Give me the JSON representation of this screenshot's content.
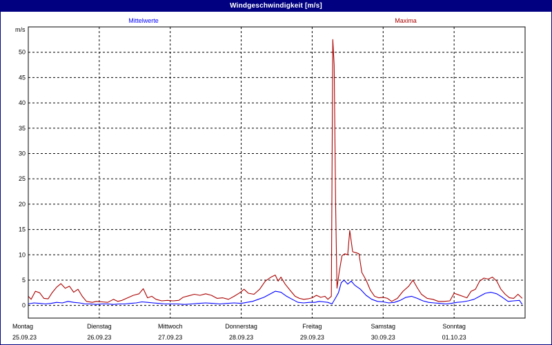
{
  "window": {
    "title": "Windgeschwindigkeit [m/s]"
  },
  "colors": {
    "mean": "#0000ff",
    "max": "#aa0000",
    "grid": "#000000",
    "frame": "#000080"
  },
  "chart_data": {
    "type": "line",
    "title": "Windgeschwindigkeit [m/s]",
    "ylabel": "m/s",
    "ylim": [
      -2.5,
      55
    ],
    "yticks": [
      0,
      5,
      10,
      15,
      20,
      25,
      30,
      35,
      40,
      45,
      50
    ],
    "xlim": [
      0,
      7
    ],
    "x_unit": "days since 25.09.23 00:00",
    "xticks": [
      {
        "day": "Montag",
        "date": "25.09.23"
      },
      {
        "day": "Dienstag",
        "date": "26.09.23"
      },
      {
        "day": "Mittwoch",
        "date": "27.09.23"
      },
      {
        "day": "Donnerstag",
        "date": "28.09.23"
      },
      {
        "day": "Freitag",
        "date": "29.09.23"
      },
      {
        "day": "Samstag",
        "date": "30.09.23"
      },
      {
        "day": "Sonntag",
        "date": "01.10.23"
      }
    ],
    "grid": true,
    "legend": "top",
    "series": [
      {
        "name": "Mittelwerte",
        "color": "#0000ff",
        "points": [
          [
            0.0,
            0.3
          ],
          [
            0.08,
            0.5
          ],
          [
            0.16,
            0.4
          ],
          [
            0.24,
            0.3
          ],
          [
            0.32,
            0.4
          ],
          [
            0.4,
            0.6
          ],
          [
            0.48,
            0.5
          ],
          [
            0.56,
            0.8
          ],
          [
            0.64,
            0.6
          ],
          [
            0.72,
            0.5
          ],
          [
            0.8,
            0.3
          ],
          [
            0.88,
            0.3
          ],
          [
            0.96,
            0.2
          ],
          [
            1.04,
            0.3
          ],
          [
            1.12,
            0.3
          ],
          [
            1.2,
            0.2
          ],
          [
            1.28,
            0.3
          ],
          [
            1.36,
            0.3
          ],
          [
            1.44,
            0.4
          ],
          [
            1.52,
            0.5
          ],
          [
            1.6,
            0.7
          ],
          [
            1.68,
            0.6
          ],
          [
            1.76,
            0.5
          ],
          [
            1.84,
            0.4
          ],
          [
            1.92,
            0.3
          ],
          [
            2.0,
            0.3
          ],
          [
            2.1,
            0.3
          ],
          [
            2.2,
            0.2
          ],
          [
            2.3,
            0.3
          ],
          [
            2.4,
            0.4
          ],
          [
            2.5,
            0.5
          ],
          [
            2.6,
            0.4
          ],
          [
            2.7,
            0.3
          ],
          [
            2.8,
            0.4
          ],
          [
            2.9,
            0.5
          ],
          [
            3.0,
            0.4
          ],
          [
            3.08,
            0.6
          ],
          [
            3.16,
            0.8
          ],
          [
            3.24,
            1.2
          ],
          [
            3.32,
            1.6
          ],
          [
            3.4,
            2.2
          ],
          [
            3.48,
            2.8
          ],
          [
            3.56,
            2.6
          ],
          [
            3.64,
            1.8
          ],
          [
            3.72,
            1.2
          ],
          [
            3.8,
            0.6
          ],
          [
            3.88,
            0.5
          ],
          [
            3.96,
            0.6
          ],
          [
            4.04,
            0.6
          ],
          [
            4.1,
            0.8
          ],
          [
            4.16,
            0.7
          ],
          [
            4.22,
            0.6
          ],
          [
            4.28,
            0.3
          ],
          [
            4.33,
            1.5
          ],
          [
            4.37,
            2.5
          ],
          [
            4.41,
            4.5
          ],
          [
            4.45,
            5.0
          ],
          [
            4.5,
            4.2
          ],
          [
            4.55,
            4.8
          ],
          [
            4.6,
            4.0
          ],
          [
            4.68,
            3.2
          ],
          [
            4.76,
            2.0
          ],
          [
            4.84,
            1.2
          ],
          [
            4.92,
            0.8
          ],
          [
            5.0,
            0.7
          ],
          [
            5.08,
            0.5
          ],
          [
            5.16,
            0.6
          ],
          [
            5.24,
            1.0
          ],
          [
            5.32,
            1.6
          ],
          [
            5.4,
            1.8
          ],
          [
            5.48,
            1.4
          ],
          [
            5.56,
            0.9
          ],
          [
            5.64,
            0.6
          ],
          [
            5.72,
            0.5
          ],
          [
            5.8,
            0.4
          ],
          [
            5.88,
            0.3
          ],
          [
            5.96,
            0.4
          ],
          [
            6.04,
            0.6
          ],
          [
            6.12,
            0.7
          ],
          [
            6.2,
            0.9
          ],
          [
            6.28,
            1.2
          ],
          [
            6.36,
            1.8
          ],
          [
            6.44,
            2.4
          ],
          [
            6.52,
            2.6
          ],
          [
            6.6,
            2.3
          ],
          [
            6.68,
            1.6
          ],
          [
            6.76,
            0.8
          ],
          [
            6.84,
            0.9
          ],
          [
            6.92,
            1.0
          ],
          [
            6.96,
            0.2
          ]
        ]
      },
      {
        "name": "Maxima",
        "color": "#aa0000",
        "points": [
          [
            0.0,
            1.8
          ],
          [
            0.04,
            1.2
          ],
          [
            0.1,
            2.8
          ],
          [
            0.16,
            2.5
          ],
          [
            0.22,
            1.4
          ],
          [
            0.28,
            1.3
          ],
          [
            0.34,
            2.6
          ],
          [
            0.4,
            3.6
          ],
          [
            0.46,
            4.3
          ],
          [
            0.52,
            3.4
          ],
          [
            0.58,
            3.8
          ],
          [
            0.64,
            2.6
          ],
          [
            0.7,
            3.2
          ],
          [
            0.76,
            1.8
          ],
          [
            0.82,
            0.8
          ],
          [
            0.9,
            0.6
          ],
          [
            0.96,
            0.8
          ],
          [
            1.04,
            0.7
          ],
          [
            1.12,
            0.6
          ],
          [
            1.2,
            1.2
          ],
          [
            1.26,
            0.8
          ],
          [
            1.32,
            1.0
          ],
          [
            1.4,
            1.5
          ],
          [
            1.48,
            2.0
          ],
          [
            1.56,
            2.3
          ],
          [
            1.62,
            3.3
          ],
          [
            1.68,
            1.5
          ],
          [
            1.74,
            1.8
          ],
          [
            1.8,
            1.2
          ],
          [
            1.88,
            0.9
          ],
          [
            1.96,
            1.0
          ],
          [
            2.04,
            0.9
          ],
          [
            2.12,
            1.0
          ],
          [
            2.18,
            1.6
          ],
          [
            2.26,
            1.9
          ],
          [
            2.34,
            2.2
          ],
          [
            2.42,
            2.0
          ],
          [
            2.5,
            2.3
          ],
          [
            2.58,
            2.0
          ],
          [
            2.66,
            1.4
          ],
          [
            2.74,
            1.5
          ],
          [
            2.82,
            1.2
          ],
          [
            2.9,
            1.8
          ],
          [
            2.98,
            2.5
          ],
          [
            3.04,
            3.2
          ],
          [
            3.1,
            2.4
          ],
          [
            3.18,
            2.2
          ],
          [
            3.26,
            3.2
          ],
          [
            3.34,
            4.8
          ],
          [
            3.42,
            5.6
          ],
          [
            3.48,
            6.0
          ],
          [
            3.52,
            4.8
          ],
          [
            3.56,
            5.6
          ],
          [
            3.62,
            4.2
          ],
          [
            3.7,
            2.8
          ],
          [
            3.76,
            1.8
          ],
          [
            3.82,
            1.4
          ],
          [
            3.88,
            1.2
          ],
          [
            3.94,
            1.3
          ],
          [
            4.0,
            1.5
          ],
          [
            4.06,
            2.0
          ],
          [
            4.12,
            1.6
          ],
          [
            4.18,
            1.8
          ],
          [
            4.22,
            1.2
          ],
          [
            4.27,
            1.8
          ],
          [
            4.29,
            52.5
          ],
          [
            4.31,
            47.5
          ],
          [
            4.33,
            20.0
          ],
          [
            4.35,
            3.4
          ],
          [
            4.38,
            6.5
          ],
          [
            4.42,
            9.8
          ],
          [
            4.46,
            10.2
          ],
          [
            4.5,
            10.0
          ],
          [
            4.53,
            14.8
          ],
          [
            4.57,
            10.6
          ],
          [
            4.62,
            10.4
          ],
          [
            4.66,
            10.2
          ],
          [
            4.7,
            6.5
          ],
          [
            4.76,
            5.0
          ],
          [
            4.82,
            3.0
          ],
          [
            4.88,
            1.8
          ],
          [
            4.94,
            1.5
          ],
          [
            5.0,
            1.6
          ],
          [
            5.06,
            1.4
          ],
          [
            5.12,
            0.8
          ],
          [
            5.2,
            1.4
          ],
          [
            5.28,
            2.8
          ],
          [
            5.36,
            3.8
          ],
          [
            5.42,
            5.0
          ],
          [
            5.48,
            3.5
          ],
          [
            5.54,
            2.2
          ],
          [
            5.62,
            1.4
          ],
          [
            5.7,
            1.2
          ],
          [
            5.78,
            0.8
          ],
          [
            5.86,
            0.8
          ],
          [
            5.94,
            0.9
          ],
          [
            6.0,
            2.4
          ],
          [
            6.06,
            2.1
          ],
          [
            6.12,
            1.8
          ],
          [
            6.18,
            1.5
          ],
          [
            6.24,
            2.8
          ],
          [
            6.3,
            3.2
          ],
          [
            6.36,
            4.8
          ],
          [
            6.42,
            5.4
          ],
          [
            6.48,
            5.2
          ],
          [
            6.54,
            5.6
          ],
          [
            6.6,
            4.8
          ],
          [
            6.66,
            3.2
          ],
          [
            6.72,
            2.2
          ],
          [
            6.78,
            1.5
          ],
          [
            6.84,
            1.4
          ],
          [
            6.9,
            2.2
          ],
          [
            6.96,
            1.4
          ]
        ]
      }
    ]
  }
}
